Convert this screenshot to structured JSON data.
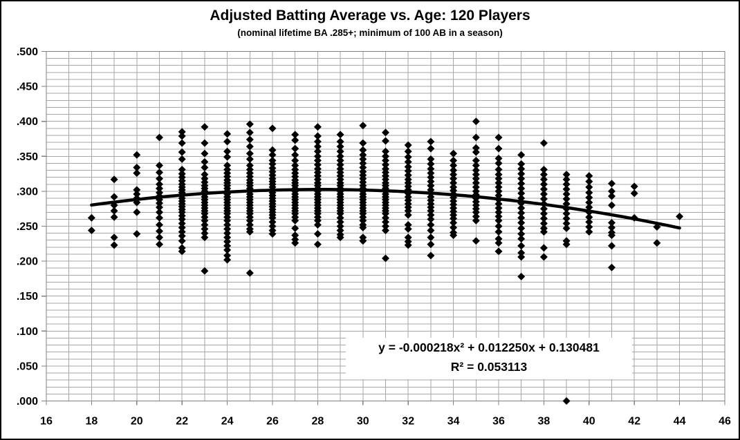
{
  "window": {
    "background": "#ffffff",
    "border_color": "#000000"
  },
  "chart_data": {
    "type": "scatter",
    "title": "Adjusted Batting Average vs. Age: 120 Players",
    "subtitle": "(nominal lifetime BA .285+; minimum of 100 AB in a season)",
    "xlabel": "",
    "ylabel": "",
    "xlim": [
      16,
      46
    ],
    "ylim": [
      0,
      0.5
    ],
    "x_major_tick": 2,
    "x_minor_grid": 1,
    "y_major_tick": 0.05,
    "y_minor_grid": 0.01,
    "grid": "on",
    "legend": "none",
    "x_tick_labels": [
      "16",
      "18",
      "20",
      "22",
      "24",
      "26",
      "28",
      "30",
      "32",
      "34",
      "36",
      "38",
      "40",
      "42",
      "44",
      "46"
    ],
    "y_tick_labels": [
      ".000",
      ".050",
      ".100",
      ".150",
      ".200",
      ".250",
      ".300",
      ".350",
      ".400",
      ".450",
      ".500"
    ],
    "marker": "diamond",
    "marker_color": "#000000",
    "marker_size": 11,
    "gridline_color": "#a6a6a6",
    "axis_color": "#7f7f7f",
    "series": [
      {
        "age": 18,
        "values": [
          0.262,
          0.244
        ]
      },
      {
        "age": 19,
        "values": [
          0.317,
          0.292,
          0.28,
          0.272,
          0.263,
          0.234,
          0.223
        ]
      },
      {
        "age": 20,
        "values": [
          0.352,
          0.334,
          0.326,
          0.302,
          0.296,
          0.29,
          0.284,
          0.27,
          0.239
        ]
      },
      {
        "age": 21,
        "values": [
          0.377,
          0.337,
          0.327,
          0.318,
          0.31,
          0.304,
          0.298,
          0.293,
          0.288,
          0.283,
          0.277,
          0.27,
          0.262,
          0.252,
          0.243,
          0.234,
          0.224
        ]
      },
      {
        "age": 22,
        "values": [
          0.385,
          0.379,
          0.369,
          0.356,
          0.346,
          0.331,
          0.325,
          0.32,
          0.315,
          0.31,
          0.306,
          0.302,
          0.298,
          0.294,
          0.29,
          0.286,
          0.282,
          0.278,
          0.274,
          0.27,
          0.265,
          0.26,
          0.254,
          0.248,
          0.242,
          0.236,
          0.229,
          0.219,
          0.214
        ]
      },
      {
        "age": 23,
        "values": [
          0.392,
          0.369,
          0.354,
          0.342,
          0.334,
          0.324,
          0.318,
          0.313,
          0.308,
          0.304,
          0.3,
          0.296,
          0.292,
          0.288,
          0.284,
          0.28,
          0.276,
          0.272,
          0.268,
          0.263,
          0.258,
          0.252,
          0.246,
          0.24,
          0.234,
          0.186
        ]
      },
      {
        "age": 24,
        "values": [
          0.382,
          0.371,
          0.357,
          0.349,
          0.337,
          0.331,
          0.326,
          0.321,
          0.316,
          0.312,
          0.308,
          0.304,
          0.3,
          0.296,
          0.292,
          0.288,
          0.284,
          0.28,
          0.276,
          0.272,
          0.268,
          0.263,
          0.258,
          0.252,
          0.246,
          0.24,
          0.234,
          0.228,
          0.222,
          0.216,
          0.208,
          0.202
        ]
      },
      {
        "age": 25,
        "values": [
          0.396,
          0.384,
          0.374,
          0.364,
          0.354,
          0.346,
          0.337,
          0.331,
          0.326,
          0.321,
          0.316,
          0.312,
          0.308,
          0.304,
          0.3,
          0.296,
          0.292,
          0.288,
          0.284,
          0.28,
          0.276,
          0.272,
          0.268,
          0.263,
          0.258,
          0.252,
          0.246,
          0.242,
          0.183
        ]
      },
      {
        "age": 26,
        "values": [
          0.39,
          0.359,
          0.352,
          0.344,
          0.339,
          0.333,
          0.328,
          0.323,
          0.318,
          0.314,
          0.31,
          0.306,
          0.302,
          0.298,
          0.294,
          0.29,
          0.286,
          0.282,
          0.278,
          0.274,
          0.27,
          0.266,
          0.262,
          0.256,
          0.25,
          0.244,
          0.239
        ]
      },
      {
        "age": 27,
        "values": [
          0.381,
          0.373,
          0.361,
          0.352,
          0.344,
          0.337,
          0.331,
          0.326,
          0.321,
          0.316,
          0.312,
          0.308,
          0.304,
          0.3,
          0.296,
          0.292,
          0.288,
          0.284,
          0.28,
          0.276,
          0.272,
          0.268,
          0.263,
          0.258,
          0.247,
          0.237,
          0.231,
          0.226
        ]
      },
      {
        "age": 28,
        "values": [
          0.392,
          0.379,
          0.371,
          0.364,
          0.357,
          0.35,
          0.344,
          0.338,
          0.332,
          0.327,
          0.322,
          0.317,
          0.312,
          0.308,
          0.304,
          0.3,
          0.296,
          0.292,
          0.288,
          0.284,
          0.28,
          0.276,
          0.272,
          0.268,
          0.263,
          0.258,
          0.252,
          0.239,
          0.224
        ]
      },
      {
        "age": 29,
        "values": [
          0.381,
          0.371,
          0.364,
          0.357,
          0.35,
          0.344,
          0.338,
          0.332,
          0.327,
          0.322,
          0.317,
          0.312,
          0.308,
          0.304,
          0.3,
          0.296,
          0.292,
          0.288,
          0.284,
          0.28,
          0.276,
          0.272,
          0.268,
          0.262,
          0.256,
          0.25,
          0.244,
          0.238,
          0.234
        ]
      },
      {
        "age": 30,
        "values": [
          0.394,
          0.369,
          0.359,
          0.352,
          0.346,
          0.34,
          0.334,
          0.328,
          0.323,
          0.318,
          0.313,
          0.308,
          0.304,
          0.3,
          0.296,
          0.292,
          0.288,
          0.284,
          0.28,
          0.276,
          0.272,
          0.268,
          0.263,
          0.258,
          0.252,
          0.248,
          0.234,
          0.229
        ]
      },
      {
        "age": 31,
        "values": [
          0.384,
          0.372,
          0.357,
          0.35,
          0.344,
          0.338,
          0.332,
          0.327,
          0.322,
          0.317,
          0.312,
          0.308,
          0.304,
          0.3,
          0.296,
          0.292,
          0.288,
          0.284,
          0.28,
          0.276,
          0.272,
          0.268,
          0.262,
          0.256,
          0.25,
          0.244,
          0.204
        ]
      },
      {
        "age": 32,
        "values": [
          0.366,
          0.357,
          0.349,
          0.342,
          0.335,
          0.329,
          0.323,
          0.317,
          0.312,
          0.307,
          0.302,
          0.297,
          0.292,
          0.287,
          0.282,
          0.277,
          0.272,
          0.266,
          0.252,
          0.246,
          0.234,
          0.228,
          0.223
        ]
      },
      {
        "age": 33,
        "values": [
          0.371,
          0.361,
          0.346,
          0.339,
          0.332,
          0.326,
          0.32,
          0.314,
          0.308,
          0.302,
          0.297,
          0.292,
          0.287,
          0.282,
          0.277,
          0.272,
          0.266,
          0.26,
          0.252,
          0.244,
          0.234,
          0.224,
          0.208
        ]
      },
      {
        "age": 34,
        "values": [
          0.354,
          0.344,
          0.337,
          0.33,
          0.324,
          0.318,
          0.312,
          0.306,
          0.301,
          0.296,
          0.291,
          0.286,
          0.281,
          0.276,
          0.271,
          0.266,
          0.261,
          0.255,
          0.248,
          0.241,
          0.237
        ]
      },
      {
        "age": 35,
        "values": [
          0.4,
          0.377,
          0.362,
          0.356,
          0.344,
          0.337,
          0.33,
          0.324,
          0.318,
          0.312,
          0.306,
          0.3,
          0.295,
          0.29,
          0.285,
          0.28,
          0.275,
          0.27,
          0.264,
          0.258,
          0.229
        ]
      },
      {
        "age": 36,
        "values": [
          0.377,
          0.361,
          0.347,
          0.34,
          0.331,
          0.324,
          0.318,
          0.312,
          0.306,
          0.3,
          0.294,
          0.288,
          0.282,
          0.276,
          0.27,
          0.264,
          0.258,
          0.25,
          0.242,
          0.232,
          0.226,
          0.214
        ]
      },
      {
        "age": 37,
        "values": [
          0.352,
          0.339,
          0.332,
          0.325,
          0.318,
          0.311,
          0.304,
          0.297,
          0.29,
          0.283,
          0.276,
          0.269,
          0.262,
          0.255,
          0.247,
          0.239,
          0.232,
          0.222,
          0.212,
          0.206,
          0.178
        ]
      },
      {
        "age": 38,
        "values": [
          0.369,
          0.331,
          0.324,
          0.317,
          0.31,
          0.303,
          0.296,
          0.289,
          0.282,
          0.275,
          0.268,
          0.261,
          0.254,
          0.247,
          0.242,
          0.219,
          0.206
        ]
      },
      {
        "age": 39,
        "values": [
          0.324,
          0.317,
          0.31,
          0.303,
          0.296,
          0.289,
          0.282,
          0.275,
          0.268,
          0.261,
          0.254,
          0.247,
          0.229,
          0.224,
          0.0
        ]
      },
      {
        "age": 40,
        "values": [
          0.322,
          0.314,
          0.306,
          0.298,
          0.291,
          0.284,
          0.277,
          0.27,
          0.263,
          0.256,
          0.249,
          0.242
        ]
      },
      {
        "age": 41,
        "values": [
          0.311,
          0.3,
          0.293,
          0.28,
          0.255,
          0.248,
          0.241,
          0.237,
          0.222,
          0.191
        ]
      },
      {
        "age": 42,
        "values": [
          0.307,
          0.297,
          0.262
        ]
      },
      {
        "age": 43,
        "values": [
          0.249,
          0.226
        ]
      },
      {
        "age": 44,
        "values": [
          0.264
        ]
      }
    ],
    "trendline": {
      "type": "polynomial",
      "order": 2,
      "coefficients": {
        "a": -0.000218,
        "b": 0.01225,
        "c": 0.130481
      },
      "x_start": 18,
      "x_end": 44,
      "color": "#000000",
      "width": 4.5
    },
    "equation_label": "y = -0.000218x² + 0.012250x + 0.130481",
    "r_squared_label": "R² = 0.053113"
  }
}
